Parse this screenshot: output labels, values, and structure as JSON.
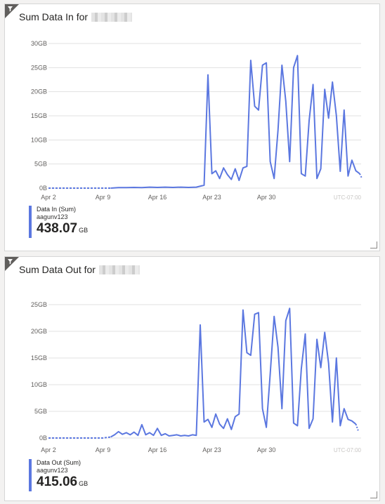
{
  "colors": {
    "series": "#5b77e0",
    "grid": "#e1e1e1",
    "axis_text": "#605e5c",
    "tz": "#c8c6c4",
    "corner": "#605e5c"
  },
  "tiles": [
    {
      "title": "Sum Data In for",
      "legend": {
        "name": "Data In (Sum)",
        "resource": "aagunv123",
        "value": "438.07",
        "unit": "GB"
      }
    },
    {
      "title": "Sum Data Out for",
      "legend": {
        "name": "Data Out (Sum)",
        "resource": "aagunv123",
        "value": "415.06",
        "unit": "GB"
      }
    }
  ],
  "chart_data": [
    {
      "type": "line",
      "x_ticks": [
        "Apr 2",
        "Apr 9",
        "Apr 16",
        "Apr 23",
        "Apr 30"
      ],
      "x_tick_days": [
        0,
        7,
        14,
        21,
        28
      ],
      "y_ticks": [
        "0B",
        "5GB",
        "10GB",
        "15GB",
        "20GB",
        "25GB",
        "30GB"
      ],
      "ylim": [
        0,
        30
      ],
      "xlim": [
        0,
        40
      ],
      "timezone": "UTC-07:00",
      "dashed_days": [
        [
          0,
          8
        ],
        [
          38,
          38.5
        ]
      ],
      "series": [
        {
          "name": "Data In (Sum)",
          "points": [
            [
              0,
              0
            ],
            [
              1,
              0
            ],
            [
              2,
              0
            ],
            [
              3,
              0
            ],
            [
              4,
              0
            ],
            [
              5,
              0
            ],
            [
              6,
              0
            ],
            [
              7,
              0
            ],
            [
              8,
              0
            ],
            [
              9,
              0.1
            ],
            [
              10,
              0.1
            ],
            [
              11,
              0.15
            ],
            [
              12,
              0.1
            ],
            [
              13,
              0.2
            ],
            [
              14,
              0.15
            ],
            [
              15,
              0.2
            ],
            [
              16,
              0.15
            ],
            [
              17,
              0.2
            ],
            [
              18,
              0.15
            ],
            [
              19,
              0.2
            ],
            [
              20,
              0.6
            ],
            [
              20.5,
              23.5
            ],
            [
              21,
              3
            ],
            [
              21.5,
              3.6
            ],
            [
              22,
              2
            ],
            [
              22.5,
              4.2
            ],
            [
              23,
              2.8
            ],
            [
              23.5,
              1.8
            ],
            [
              24,
              4
            ],
            [
              24.5,
              1.6
            ],
            [
              25,
              4.2
            ],
            [
              25.5,
              4.5
            ],
            [
              26,
              26.5
            ],
            [
              26.5,
              17
            ],
            [
              27,
              16.2
            ],
            [
              27.5,
              25.5
            ],
            [
              28,
              26
            ],
            [
              28.5,
              5.5
            ],
            [
              29,
              2
            ],
            [
              29.5,
              12
            ],
            [
              30,
              25.5
            ],
            [
              30.5,
              18
            ],
            [
              31,
              5.5
            ],
            [
              31.5,
              25
            ],
            [
              32,
              27.5
            ],
            [
              32.5,
              3
            ],
            [
              33,
              2.5
            ],
            [
              33.5,
              14
            ],
            [
              34,
              21.5
            ],
            [
              34.5,
              2
            ],
            [
              35,
              4
            ],
            [
              35.5,
              20.5
            ],
            [
              36,
              14.5
            ],
            [
              36.5,
              22
            ],
            [
              37,
              15
            ],
            [
              37.5,
              3.5
            ],
            [
              38,
              16.2
            ],
            [
              38.5,
              2.5
            ],
            [
              39,
              5.8
            ],
            [
              39.5,
              3.6
            ],
            [
              40,
              3
            ]
          ],
          "tail": [
            [
              40,
              3
            ],
            [
              40.3,
              2
            ]
          ]
        }
      ]
    },
    {
      "type": "line",
      "x_ticks": [
        "Apr 2",
        "Apr 9",
        "Apr 16",
        "Apr 23",
        "Apr 30"
      ],
      "x_tick_days": [
        0,
        7,
        14,
        21,
        28
      ],
      "y_ticks": [
        "0B",
        "5GB",
        "10GB",
        "15GB",
        "20GB",
        "25GB"
      ],
      "ylim": [
        0,
        25
      ],
      "xlim": [
        0,
        40
      ],
      "timezone": "UTC-07:00",
      "dashed_days": [
        [
          0,
          8
        ],
        [
          38,
          38.5
        ]
      ],
      "series": [
        {
          "name": "Data Out (Sum)",
          "points": [
            [
              0,
              0
            ],
            [
              1,
              0
            ],
            [
              2,
              0
            ],
            [
              3,
              0
            ],
            [
              4,
              0
            ],
            [
              5,
              0
            ],
            [
              6,
              0
            ],
            [
              7,
              0
            ],
            [
              8,
              0.2
            ],
            [
              8.5,
              0.6
            ],
            [
              9,
              1.2
            ],
            [
              9.5,
              0.7
            ],
            [
              10,
              1
            ],
            [
              10.5,
              0.6
            ],
            [
              11,
              1.1
            ],
            [
              11.5,
              0.5
            ],
            [
              12,
              2.5
            ],
            [
              12.5,
              0.6
            ],
            [
              13,
              1
            ],
            [
              13.5,
              0.5
            ],
            [
              14,
              1.8
            ],
            [
              14.5,
              0.5
            ],
            [
              15,
              0.8
            ],
            [
              15.5,
              0.4
            ],
            [
              16,
              0.5
            ],
            [
              16.5,
              0.6
            ],
            [
              17,
              0.4
            ],
            [
              17.5,
              0.5
            ],
            [
              18,
              0.4
            ],
            [
              18.5,
              0.6
            ],
            [
              19,
              0.5
            ],
            [
              19.5,
              21.2
            ],
            [
              20,
              3
            ],
            [
              20.5,
              3.5
            ],
            [
              21,
              2
            ],
            [
              21.5,
              4.5
            ],
            [
              22,
              2.6
            ],
            [
              22.5,
              1.8
            ],
            [
              23,
              3.6
            ],
            [
              23.5,
              1.6
            ],
            [
              24,
              4
            ],
            [
              24.5,
              4.5
            ],
            [
              25,
              24
            ],
            [
              25.5,
              16
            ],
            [
              26,
              15.5
            ],
            [
              26.5,
              23.2
            ],
            [
              27,
              23.5
            ],
            [
              27.5,
              5.5
            ],
            [
              28,
              2
            ],
            [
              28.5,
              12
            ],
            [
              29,
              22.8
            ],
            [
              29.5,
              17
            ],
            [
              30,
              5.5
            ],
            [
              30.5,
              22
            ],
            [
              31,
              24.3
            ],
            [
              31.5,
              2.8
            ],
            [
              32,
              2.3
            ],
            [
              32.5,
              13
            ],
            [
              33,
              19.5
            ],
            [
              33.5,
              1.8
            ],
            [
              34,
              3.6
            ],
            [
              34.5,
              18.5
            ],
            [
              35,
              13.2
            ],
            [
              35.5,
              19.8
            ],
            [
              36,
              14
            ],
            [
              36.5,
              3
            ],
            [
              37,
              15
            ],
            [
              37.5,
              2.3
            ],
            [
              38,
              5.5
            ],
            [
              38.5,
              3.5
            ],
            [
              39,
              3.2
            ],
            [
              39.5,
              2.6
            ]
          ],
          "tail": [
            [
              39.5,
              2.6
            ],
            [
              39.8,
              1.4
            ]
          ]
        }
      ]
    }
  ]
}
